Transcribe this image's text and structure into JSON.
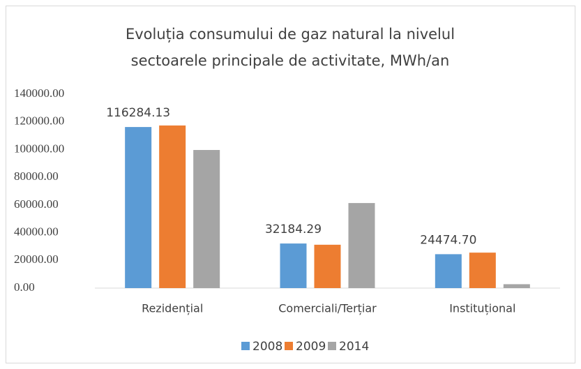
{
  "chart_data": {
    "type": "bar",
    "title": [
      "Evoluția consumului de gaz natural la nivelul",
      "sectoarele principale de activitate, MWh/an"
    ],
    "categories": [
      "Rezidențial",
      "Comerciali/Terțiar",
      "Instituțional"
    ],
    "series": [
      {
        "name": "2008",
        "color": "#5b9bd5",
        "values": [
          116284.13,
          32184.29,
          24474.7
        ],
        "value_labels": [
          "116284.13",
          "32184.29",
          "24474.70"
        ]
      },
      {
        "name": "2009",
        "color": "#ed7d31",
        "values": [
          117400,
          31300,
          25600
        ]
      },
      {
        "name": "2014",
        "color": "#a5a5a5",
        "values": [
          99700,
          61400,
          2800
        ]
      }
    ],
    "ylim": [
      0,
      140000
    ],
    "yticks": [
      {
        "value": 0,
        "label": "0.00"
      },
      {
        "value": 20000,
        "label": "20000.00"
      },
      {
        "value": 40000,
        "label": "40000.00"
      },
      {
        "value": 60000,
        "label": "60000.00"
      },
      {
        "value": 80000,
        "label": "80000.00"
      },
      {
        "value": 100000,
        "label": "100000.00"
      },
      {
        "value": 120000,
        "label": "120000.00"
      },
      {
        "value": 140000,
        "label": "140000.00"
      }
    ],
    "legend": "bottom"
  }
}
